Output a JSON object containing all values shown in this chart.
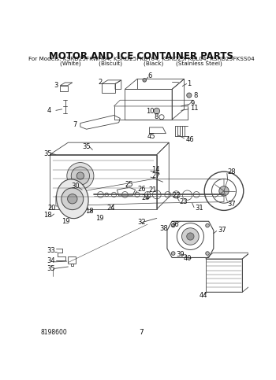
{
  "title": "MOTOR AND ICE CONTAINER PARTS",
  "subtitle": "For Models: KSRD25FKWH04, KSRD25FKBT04, KSRD25FKBL04, KSRD25FKSS04",
  "subtitle2": "(White)          (Biscuit)            (Black)       (Stainless Steel)",
  "doc_number": "8198600",
  "page_number": "7",
  "bg_color": "#ffffff",
  "line_color": "#444444",
  "text_color": "#111111",
  "title_fontsize": 8.5,
  "subtitle_fontsize": 5.2,
  "label_fontsize": 6.0
}
